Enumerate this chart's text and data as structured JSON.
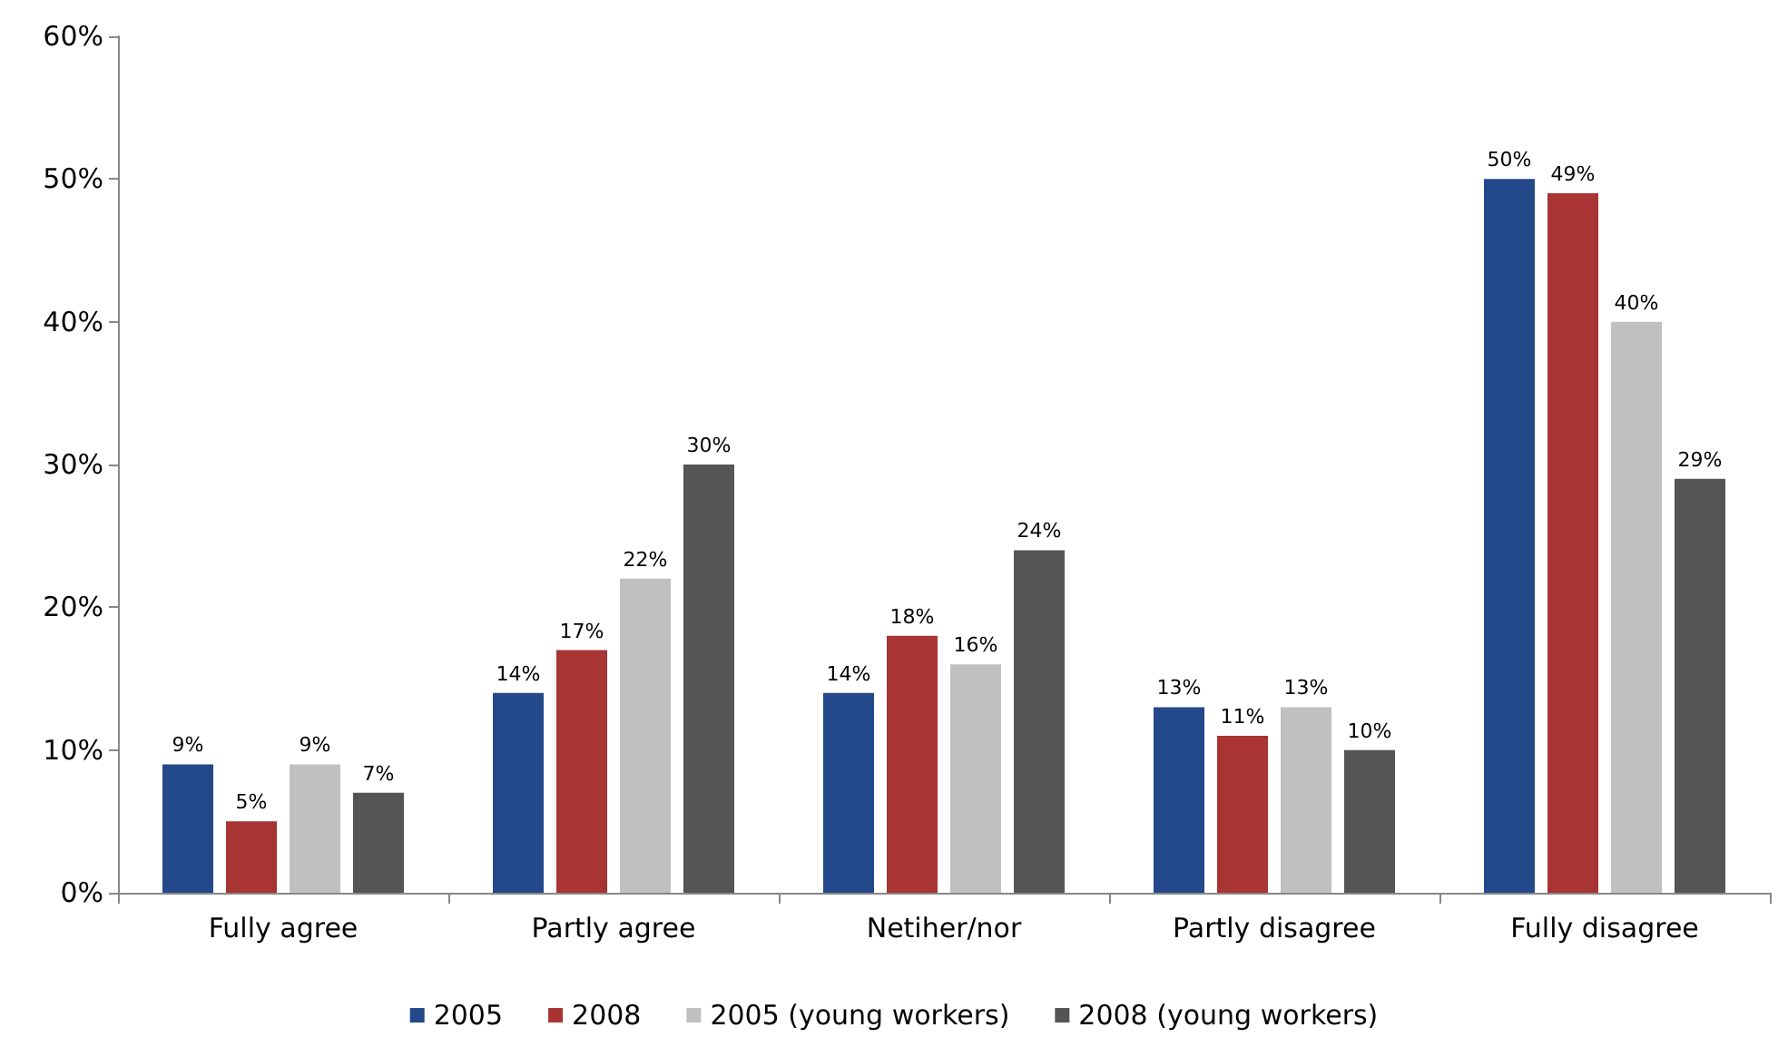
{
  "chart_data": {
    "type": "bar",
    "categories": [
      "Fully agree",
      "Partly agree",
      "Netiher/nor",
      "Partly disagree",
      "Fully disagree"
    ],
    "series": [
      {
        "name": "2005",
        "color": "#23498a",
        "values": [
          9,
          14,
          14,
          13,
          50
        ],
        "value_labels": [
          "9%",
          "14%",
          "14%",
          "13%",
          "50%"
        ]
      },
      {
        "name": "2008",
        "color": "#a83434",
        "values": [
          5,
          17,
          18,
          11,
          49
        ],
        "value_labels": [
          "5%",
          "17%",
          "18%",
          "11%",
          "49%"
        ]
      },
      {
        "name": "2005 (young workers)",
        "color": "#c0c0c0",
        "values": [
          9,
          22,
          16,
          13,
          40
        ],
        "value_labels": [
          "9%",
          "22%",
          "16%",
          "13%",
          "40%"
        ]
      },
      {
        "name": "2008 (young workers)",
        "color": "#555555",
        "values": [
          7,
          30,
          24,
          10,
          29
        ],
        "value_labels": [
          "7%",
          "30%",
          "24%",
          "10%",
          "29%"
        ]
      }
    ],
    "ylim": [
      0,
      60
    ],
    "yticks": [
      {
        "value": 0,
        "label": "0%"
      },
      {
        "value": 10,
        "label": "10%"
      },
      {
        "value": 20,
        "label": "20%"
      },
      {
        "value": 30,
        "label": "30%"
      },
      {
        "value": 40,
        "label": "40%"
      },
      {
        "value": 50,
        "label": "50%"
      },
      {
        "value": 60,
        "label": "60%"
      }
    ],
    "grid": false,
    "legend": "bottom"
  }
}
